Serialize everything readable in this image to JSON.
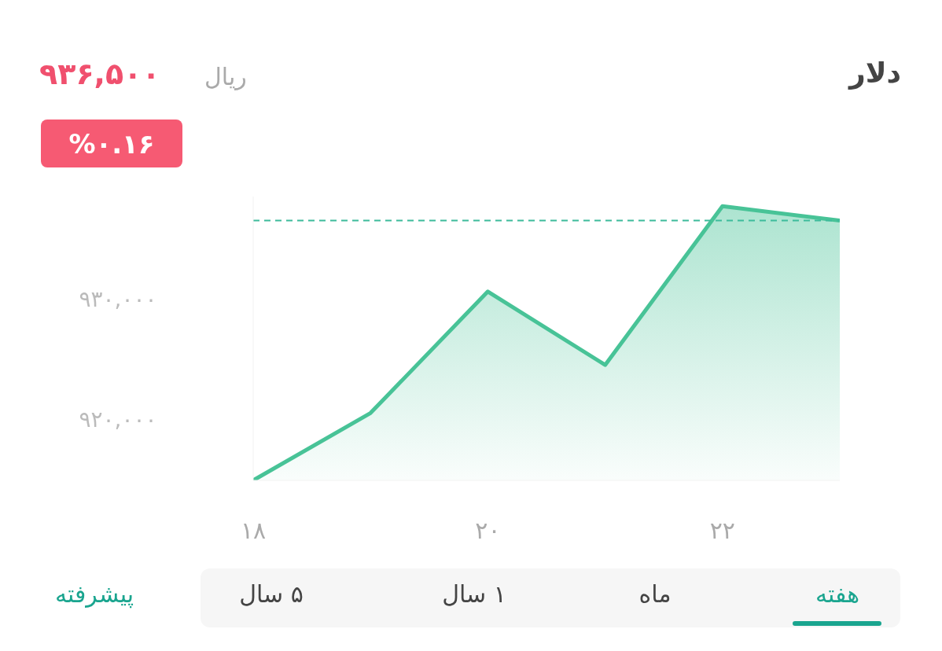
{
  "chart_data": {
    "type": "area",
    "title": "دلار",
    "x": [
      18,
      19,
      20,
      21,
      22,
      23
    ],
    "series": [
      {
        "color": "#48c397",
        "values": [
          914900,
          920500,
          930600,
          924500,
          937700,
          936500
        ]
      }
    ],
    "xlim": [
      18,
      23
    ],
    "xticks": [
      {
        "value": 18,
        "label": "۱۸"
      },
      {
        "value": 20,
        "label": "۲۰"
      },
      {
        "value": 22,
        "label": "۲۲"
      }
    ],
    "ylim": [
      914900,
      938500
    ],
    "yticks": [
      {
        "value": 920000,
        "label": "۹۲۰,۰۰۰"
      },
      {
        "value": 930000,
        "label": "۹۳۰,۰۰۰"
      }
    ],
    "ref_lines": [
      {
        "axis": "y",
        "value": 936500,
        "color": "#3dbb9b",
        "line_style": "dashed"
      }
    ],
    "annotations": [
      "۹۳۶,۵۰۰",
      "ریال",
      "%۰.۱۶",
      "هفته",
      "ماه",
      "۱ سال",
      "۵ سال",
      "پیشرفته"
    ],
    "grid": false,
    "legend": false,
    "marker": "none",
    "line_style": "solid"
  }
}
